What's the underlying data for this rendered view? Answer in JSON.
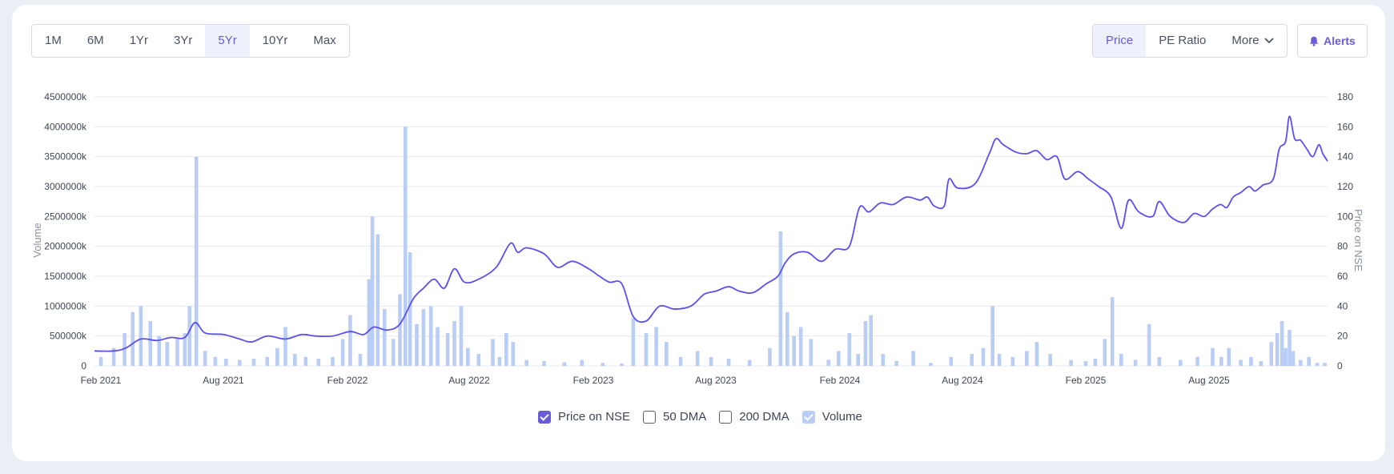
{
  "ranges": [
    "1M",
    "6M",
    "1Yr",
    "3Yr",
    "5Yr",
    "10Yr",
    "Max"
  ],
  "active_range": "5Yr",
  "views": {
    "price": "Price",
    "pe": "PE Ratio",
    "more": "More"
  },
  "alerts_label": "Alerts",
  "legend": [
    "Price on NSE",
    "50 DMA",
    "200 DMA",
    "Volume"
  ],
  "colors": {
    "price": "#5b4ff0",
    "volume": "#b9cdf5",
    "accent": "#6a5bd6"
  },
  "chart_data": {
    "type": "line",
    "xlabel": "",
    "ylabel": "Volume",
    "y2label": "Price on NSE",
    "x_ticks": [
      "Feb 2021",
      "Aug 2021",
      "Feb 2022",
      "Aug 2022",
      "Feb 2023",
      "Aug 2023",
      "Feb 2024",
      "Aug 2024",
      "Feb 2025",
      "Aug 2025"
    ],
    "y_ticks": [
      "0",
      "500000k",
      "1000000k",
      "1500000k",
      "2000000k",
      "2500000k",
      "3000000k",
      "3500000k",
      "4000000k",
      "4500000k"
    ],
    "y2_ticks": [
      "0",
      "20",
      "40",
      "60",
      "80",
      "100",
      "120",
      "140",
      "160",
      "180"
    ],
    "ylim": [
      0,
      4500000
    ],
    "y2lim": [
      0,
      180
    ],
    "grid": true,
    "legend_position": "bottom",
    "series": [
      {
        "name": "Price on NSE",
        "type": "line",
        "points": [
          [
            "2021-01-28",
            10
          ],
          [
            "2021-02-20",
            10
          ],
          [
            "2021-03-10",
            12
          ],
          [
            "2021-04-01",
            18
          ],
          [
            "2021-04-25",
            17
          ],
          [
            "2021-05-15",
            19
          ],
          [
            "2021-06-05",
            19
          ],
          [
            "2021-06-20",
            29
          ],
          [
            "2021-07-05",
            22
          ],
          [
            "2021-08-01",
            21
          ],
          [
            "2021-08-25",
            18
          ],
          [
            "2021-09-12",
            16
          ],
          [
            "2021-10-05",
            20
          ],
          [
            "2021-11-01",
            18
          ],
          [
            "2021-11-25",
            21
          ],
          [
            "2021-12-15",
            20
          ],
          [
            "2022-01-10",
            20
          ],
          [
            "2022-02-05",
            23
          ],
          [
            "2022-02-25",
            21
          ],
          [
            "2022-03-12",
            26
          ],
          [
            "2022-04-01",
            24
          ],
          [
            "2022-04-20",
            28
          ],
          [
            "2022-05-10",
            45
          ],
          [
            "2022-05-25",
            52
          ],
          [
            "2022-06-10",
            58
          ],
          [
            "2022-06-25",
            52
          ],
          [
            "2022-07-10",
            65
          ],
          [
            "2022-07-25",
            56
          ],
          [
            "2022-08-15",
            58
          ],
          [
            "2022-09-10",
            66
          ],
          [
            "2022-10-01",
            82
          ],
          [
            "2022-10-12",
            76
          ],
          [
            "2022-10-25",
            79
          ],
          [
            "2022-11-20",
            75
          ],
          [
            "2022-12-10",
            66
          ],
          [
            "2023-01-01",
            70
          ],
          [
            "2023-01-25",
            65
          ],
          [
            "2023-02-10",
            60
          ],
          [
            "2023-02-25",
            56
          ],
          [
            "2023-03-15",
            55
          ],
          [
            "2023-04-01",
            33
          ],
          [
            "2023-04-20",
            30
          ],
          [
            "2023-05-10",
            40
          ],
          [
            "2023-06-01",
            38
          ],
          [
            "2023-06-25",
            40
          ],
          [
            "2023-07-15",
            48
          ],
          [
            "2023-08-01",
            50
          ],
          [
            "2023-08-20",
            53
          ],
          [
            "2023-09-05",
            50
          ],
          [
            "2023-09-25",
            49
          ],
          [
            "2023-10-15",
            55
          ],
          [
            "2023-11-01",
            60
          ],
          [
            "2023-11-12",
            69
          ],
          [
            "2023-11-25",
            75
          ],
          [
            "2023-12-15",
            76
          ],
          [
            "2024-01-05",
            70
          ],
          [
            "2024-01-25",
            78
          ],
          [
            "2024-02-15",
            80
          ],
          [
            "2024-03-01",
            106
          ],
          [
            "2024-03-15",
            103
          ],
          [
            "2024-04-01",
            109
          ],
          [
            "2024-04-20",
            108
          ],
          [
            "2024-05-10",
            113
          ],
          [
            "2024-05-30",
            111
          ],
          [
            "2024-06-10",
            113
          ],
          [
            "2024-06-20",
            107
          ],
          [
            "2024-07-05",
            107
          ],
          [
            "2024-07-12",
            125
          ],
          [
            "2024-07-25",
            119
          ],
          [
            "2024-08-20",
            122
          ],
          [
            "2024-09-10",
            142
          ],
          [
            "2024-09-20",
            152
          ],
          [
            "2024-10-01",
            148
          ],
          [
            "2024-10-20",
            143
          ],
          [
            "2024-11-05",
            142
          ],
          [
            "2024-11-20",
            144
          ],
          [
            "2024-12-05",
            138
          ],
          [
            "2024-12-20",
            140
          ],
          [
            "2025-01-01",
            125
          ],
          [
            "2025-01-20",
            130
          ],
          [
            "2025-02-05",
            125
          ],
          [
            "2025-02-20",
            120
          ],
          [
            "2025-03-10",
            113
          ],
          [
            "2025-03-25",
            92
          ],
          [
            "2025-04-05",
            111
          ],
          [
            "2025-04-20",
            103
          ],
          [
            "2025-05-10",
            100
          ],
          [
            "2025-05-20",
            110
          ],
          [
            "2025-06-05",
            100
          ],
          [
            "2025-06-25",
            96
          ],
          [
            "2025-07-10",
            102
          ],
          [
            "2025-07-25",
            100
          ],
          [
            "2025-08-10",
            105
          ],
          [
            "2025-08-30",
            108
          ],
          [
            "2025-09-15",
            106
          ],
          [
            "2025-10-01",
            113
          ],
          [
            "2025-10-20",
            116
          ],
          [
            "2025-11-10",
            120
          ],
          [
            "2025-11-25",
            117
          ],
          [
            "2025-12-15",
            121
          ],
          [
            "2026-01-10",
            125
          ],
          [
            "2026-01-25",
            145
          ],
          [
            "2026-02-10",
            150
          ],
          [
            "2026-02-20",
            167
          ],
          [
            "2026-03-05",
            152
          ],
          [
            "2026-03-20",
            151
          ],
          [
            "2026-04-05",
            145
          ],
          [
            "2026-04-20",
            140
          ],
          [
            "2026-05-05",
            148
          ],
          [
            "2026-05-15",
            142
          ],
          [
            "2026-05-27",
            137
          ]
        ]
      },
      {
        "name": "Volume",
        "type": "bar",
        "points": [
          [
            "2021-02-01",
            150000
          ],
          [
            "2021-02-20",
            300000
          ],
          [
            "2021-03-08",
            550000
          ],
          [
            "2021-03-20",
            900000
          ],
          [
            "2021-04-01",
            1000000
          ],
          [
            "2021-04-15",
            750000
          ],
          [
            "2021-04-28",
            500000
          ],
          [
            "2021-05-10",
            400000
          ],
          [
            "2021-05-25",
            450000
          ],
          [
            "2021-06-05",
            550000
          ],
          [
            "2021-06-12",
            1000000
          ],
          [
            "2021-06-22",
            3500000
          ],
          [
            "2021-07-05",
            250000
          ],
          [
            "2021-07-20",
            150000
          ],
          [
            "2021-08-05",
            120000
          ],
          [
            "2021-08-25",
            100000
          ],
          [
            "2021-09-15",
            120000
          ],
          [
            "2021-10-05",
            150000
          ],
          [
            "2021-10-20",
            300000
          ],
          [
            "2021-11-01",
            650000
          ],
          [
            "2021-11-15",
            200000
          ],
          [
            "2021-12-01",
            150000
          ],
          [
            "2021-12-20",
            120000
          ],
          [
            "2022-01-10",
            150000
          ],
          [
            "2022-01-25",
            450000
          ],
          [
            "2022-02-05",
            850000
          ],
          [
            "2022-02-20",
            200000
          ],
          [
            "2022-03-05",
            1450000
          ],
          [
            "2022-03-10",
            2500000
          ],
          [
            "2022-03-18",
            2200000
          ],
          [
            "2022-03-28",
            950000
          ],
          [
            "2022-04-10",
            450000
          ],
          [
            "2022-04-20",
            1200000
          ],
          [
            "2022-04-28",
            4000000
          ],
          [
            "2022-05-05",
            1900000
          ],
          [
            "2022-05-15",
            700000
          ],
          [
            "2022-05-25",
            950000
          ],
          [
            "2022-06-05",
            1000000
          ],
          [
            "2022-06-15",
            650000
          ],
          [
            "2022-06-30",
            550000
          ],
          [
            "2022-07-10",
            750000
          ],
          [
            "2022-07-20",
            1000000
          ],
          [
            "2022-07-30",
            300000
          ],
          [
            "2022-08-15",
            200000
          ],
          [
            "2022-09-05",
            450000
          ],
          [
            "2022-09-15",
            150000
          ],
          [
            "2022-09-25",
            550000
          ],
          [
            "2022-10-05",
            400000
          ],
          [
            "2022-10-25",
            100000
          ],
          [
            "2022-11-20",
            80000
          ],
          [
            "2022-12-20",
            60000
          ],
          [
            "2023-01-15",
            100000
          ],
          [
            "2023-02-15",
            50000
          ],
          [
            "2023-03-15",
            40000
          ],
          [
            "2023-04-01",
            800000
          ],
          [
            "2023-04-20",
            550000
          ],
          [
            "2023-05-05",
            650000
          ],
          [
            "2023-05-20",
            400000
          ],
          [
            "2023-06-10",
            150000
          ],
          [
            "2023-07-05",
            250000
          ],
          [
            "2023-07-25",
            150000
          ],
          [
            "2023-08-20",
            120000
          ],
          [
            "2023-09-20",
            100000
          ],
          [
            "2023-10-20",
            300000
          ],
          [
            "2023-11-05",
            2250000
          ],
          [
            "2023-11-15",
            900000
          ],
          [
            "2023-11-25",
            500000
          ],
          [
            "2023-12-05",
            650000
          ],
          [
            "2023-12-20",
            450000
          ],
          [
            "2024-01-15",
            100000
          ],
          [
            "2024-01-30",
            250000
          ],
          [
            "2024-02-15",
            550000
          ],
          [
            "2024-02-28",
            200000
          ],
          [
            "2024-03-10",
            750000
          ],
          [
            "2024-03-18",
            850000
          ],
          [
            "2024-04-05",
            200000
          ],
          [
            "2024-04-25",
            80000
          ],
          [
            "2024-05-20",
            250000
          ],
          [
            "2024-06-15",
            50000
          ],
          [
            "2024-07-15",
            150000
          ],
          [
            "2024-08-15",
            200000
          ],
          [
            "2024-09-01",
            300000
          ],
          [
            "2024-09-15",
            1000000
          ],
          [
            "2024-09-25",
            200000
          ],
          [
            "2024-10-15",
            150000
          ],
          [
            "2024-11-05",
            250000
          ],
          [
            "2024-11-20",
            400000
          ],
          [
            "2024-12-10",
            200000
          ],
          [
            "2025-01-10",
            100000
          ],
          [
            "2025-02-01",
            80000
          ],
          [
            "2025-02-15",
            120000
          ],
          [
            "2025-03-01",
            450000
          ],
          [
            "2025-03-12",
            1150000
          ],
          [
            "2025-03-25",
            200000
          ],
          [
            "2025-04-15",
            100000
          ],
          [
            "2025-05-05",
            700000
          ],
          [
            "2025-05-20",
            150000
          ],
          [
            "2025-06-20",
            100000
          ],
          [
            "2025-07-15",
            150000
          ],
          [
            "2025-08-10",
            300000
          ],
          [
            "2025-09-01",
            150000
          ],
          [
            "2025-09-20",
            300000
          ],
          [
            "2025-10-20",
            100000
          ],
          [
            "2025-11-15",
            150000
          ],
          [
            "2025-12-10",
            80000
          ],
          [
            "2026-01-05",
            400000
          ],
          [
            "2026-01-20",
            550000
          ],
          [
            "2026-02-01",
            750000
          ],
          [
            "2026-02-10",
            300000
          ],
          [
            "2026-02-20",
            600000
          ],
          [
            "2026-03-01",
            250000
          ],
          [
            "2026-03-20",
            100000
          ],
          [
            "2026-04-10",
            150000
          ],
          [
            "2026-05-01",
            50000
          ],
          [
            "2026-05-20",
            50000
          ]
        ]
      }
    ]
  }
}
